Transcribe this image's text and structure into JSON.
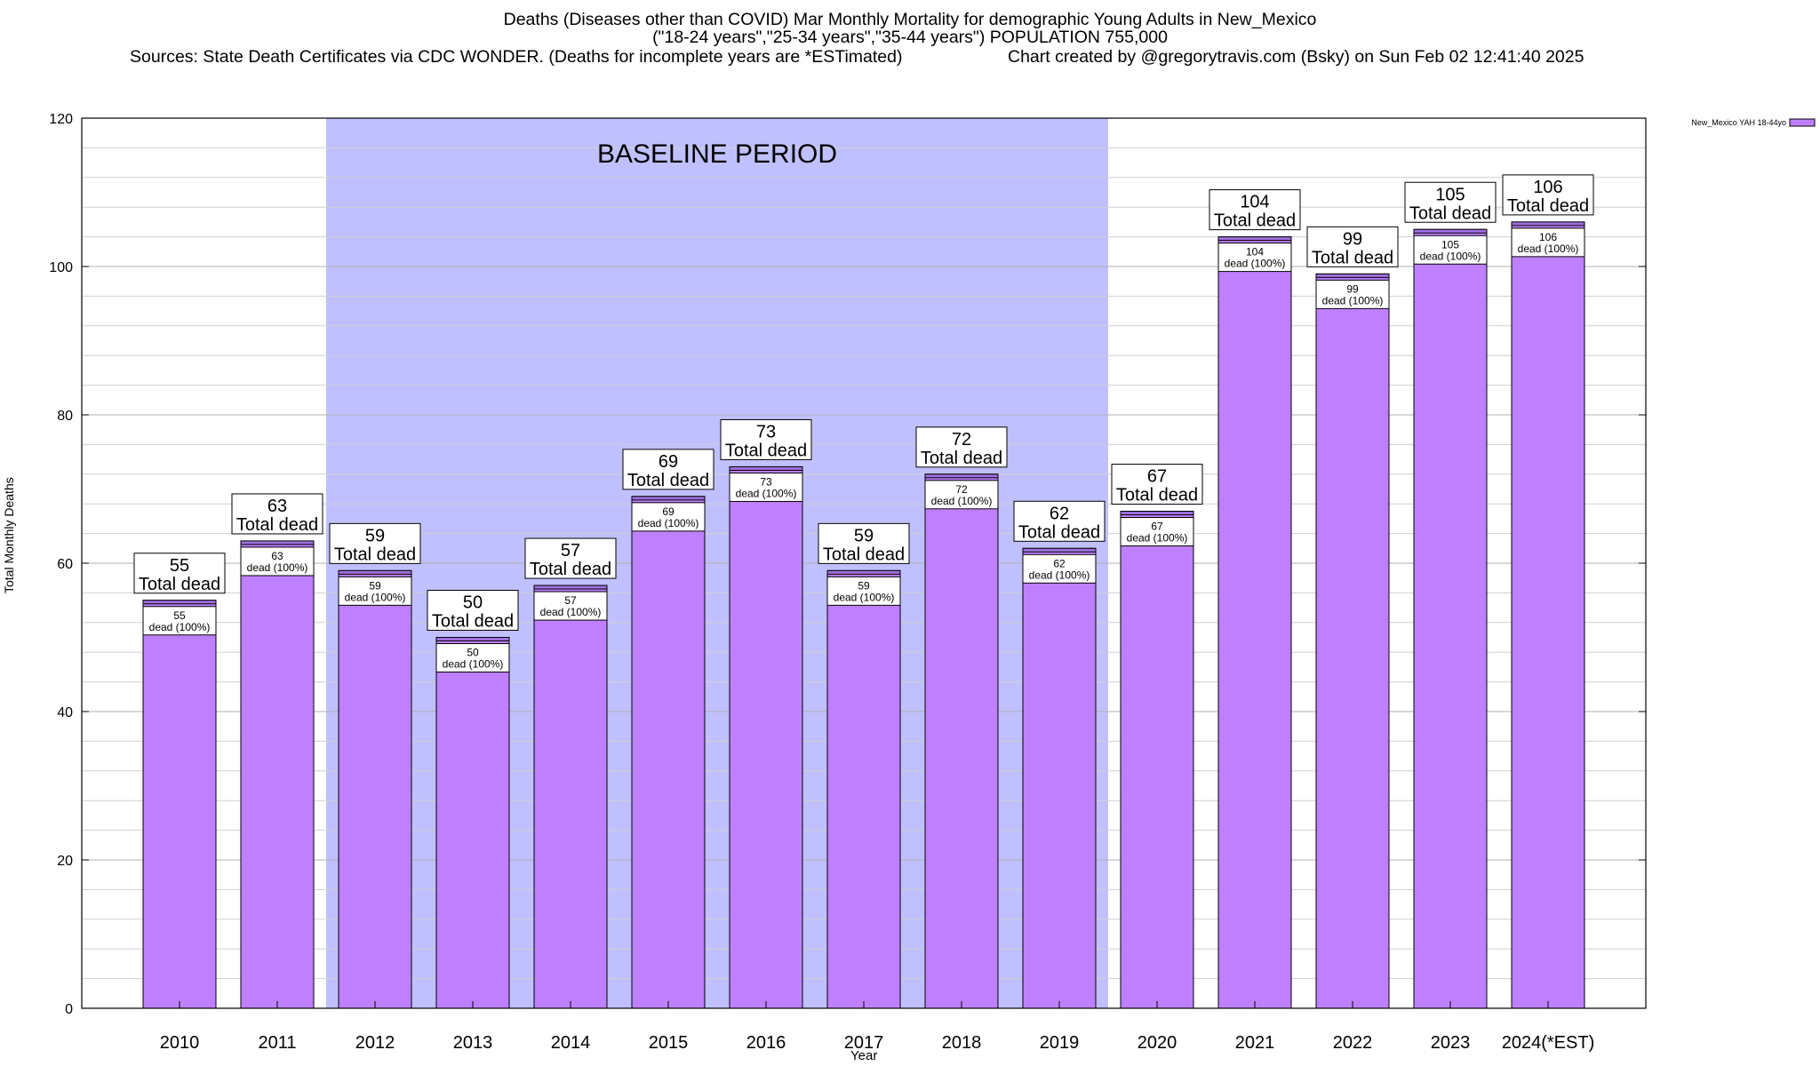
{
  "title": {
    "line1": "Deaths (Diseases other than COVID) Mar Monthly Mortality for demographic Young Adults in New_Mexico",
    "line2": "(\"18-24 years\",\"25-34 years\",\"35-44 years\") POPULATION 755,000",
    "sources": "Sources: State Death Certificates via CDC WONDER. (Deaths for incomplete years are *ESTimated)",
    "credit": "Chart created by @gregorytravis.com (Bsky) on Sun Feb 02 12:41:40 2025"
  },
  "colors": {
    "bar": "#bf80ff",
    "cap": "#a070e0",
    "baseline_band": "#c0c0ff"
  },
  "chart_data": {
    "type": "bar",
    "categories": [
      "2010",
      "2011",
      "2012",
      "2013",
      "2014",
      "2015",
      "2016",
      "2017",
      "2018",
      "2019",
      "2020",
      "2021",
      "2022",
      "2023",
      "2024(*EST)"
    ],
    "values": [
      55,
      63,
      59,
      50,
      57,
      69,
      73,
      59,
      72,
      62,
      67,
      104,
      99,
      105,
      106
    ],
    "series": [
      {
        "name": "New_Mexico YAH 18-44yo",
        "values": [
          55,
          63,
          59,
          50,
          57,
          69,
          73,
          59,
          72,
          62,
          67,
          104,
          99,
          105,
          106
        ]
      }
    ],
    "xlabel": "Year",
    "ylabel": "Total Monthly Deaths",
    "ylim": [
      0,
      120
    ],
    "yticks": [
      0,
      20,
      40,
      60,
      80,
      100,
      120
    ],
    "minor_grid_step": 4,
    "grid": true,
    "legend_position": "top-right",
    "baseline_band": {
      "label": "BASELINE PERIOD",
      "from": "2012",
      "to": "2019"
    },
    "bar_top_label_suffix": "Total dead",
    "bar_inner_label_suffix": "dead (100%)"
  }
}
